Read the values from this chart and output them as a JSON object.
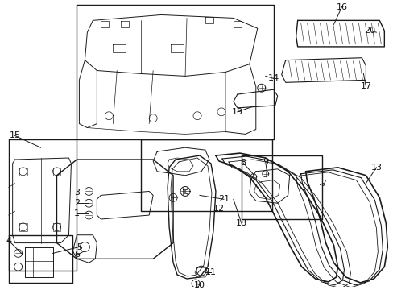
{
  "bg_color": "#ffffff",
  "line_color": "#1a1a1a",
  "fig_width": 4.89,
  "fig_height": 3.6,
  "dpi": 100,
  "border_color": "#1a1a1a"
}
